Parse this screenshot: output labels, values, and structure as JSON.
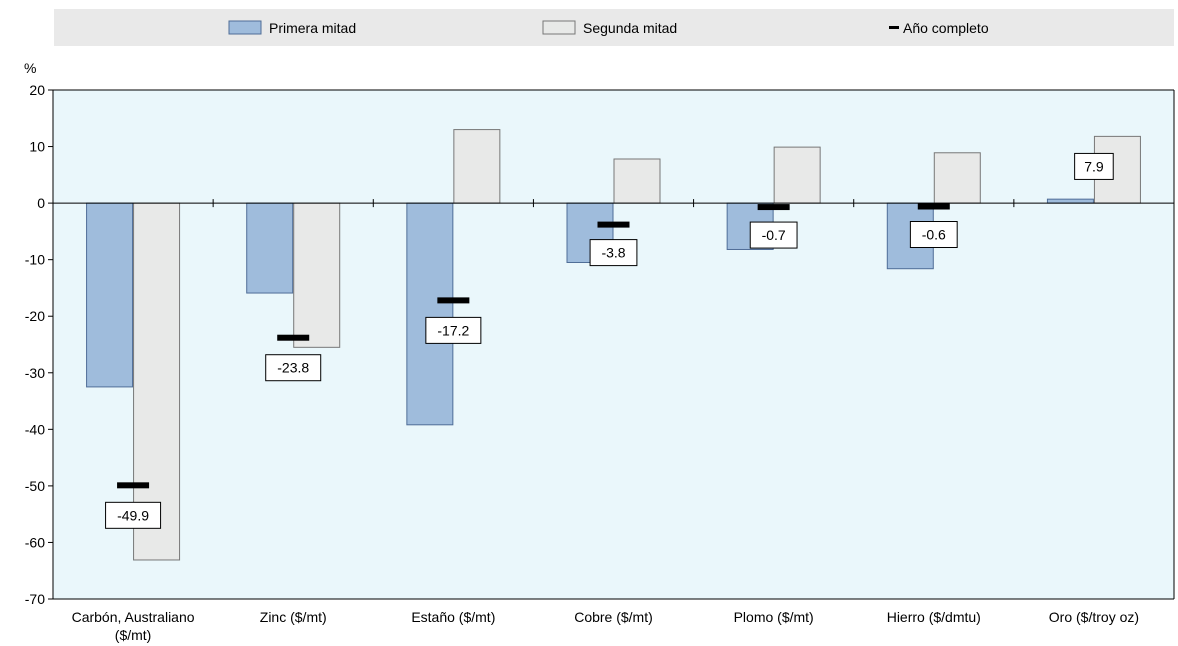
{
  "chart_data": {
    "type": "bar",
    "categories": [
      [
        "Carbón, Australiano",
        "($/mt)"
      ],
      [
        "Zinc ($/mt)"
      ],
      [
        "Estaño ($/mt)"
      ],
      [
        "Cobre ($/mt)"
      ],
      [
        "Plomo ($/mt)"
      ],
      [
        "Hierro ($/dmtu)"
      ],
      [
        "Oro ($/troy oz)"
      ]
    ],
    "series": [
      {
        "name": "Primera mitad",
        "type": "bar",
        "color": "#9fbcdc",
        "stroke": "#4f6d97",
        "values": [
          -32.5,
          -15.9,
          -39.2,
          -10.5,
          -8.2,
          -11.6,
          0.7
        ]
      },
      {
        "name": "Segunda mitad",
        "type": "bar",
        "color": "#e8e9e8",
        "stroke": "#777777",
        "values": [
          -63.1,
          -25.5,
          13.0,
          7.8,
          9.9,
          8.9,
          11.8
        ]
      },
      {
        "name": "Año completo",
        "type": "marker",
        "color": "#000000",
        "values": [
          -49.9,
          -23.8,
          -17.2,
          -3.8,
          -0.7,
          -0.6,
          7.9
        ],
        "labels": [
          "-49.9",
          "-23.8",
          "-17.2",
          "-3.8",
          "-0.7",
          "-0.6",
          "7.9"
        ]
      }
    ],
    "ylabel": "%",
    "ylim": [
      -70,
      20
    ],
    "yticks": [
      20,
      10,
      0,
      -10,
      -20,
      -30,
      -40,
      -50,
      -60,
      -70
    ],
    "legend_position": "top",
    "plot_background": "#eaf7fb",
    "legend_background": "#e9e9e9"
  }
}
